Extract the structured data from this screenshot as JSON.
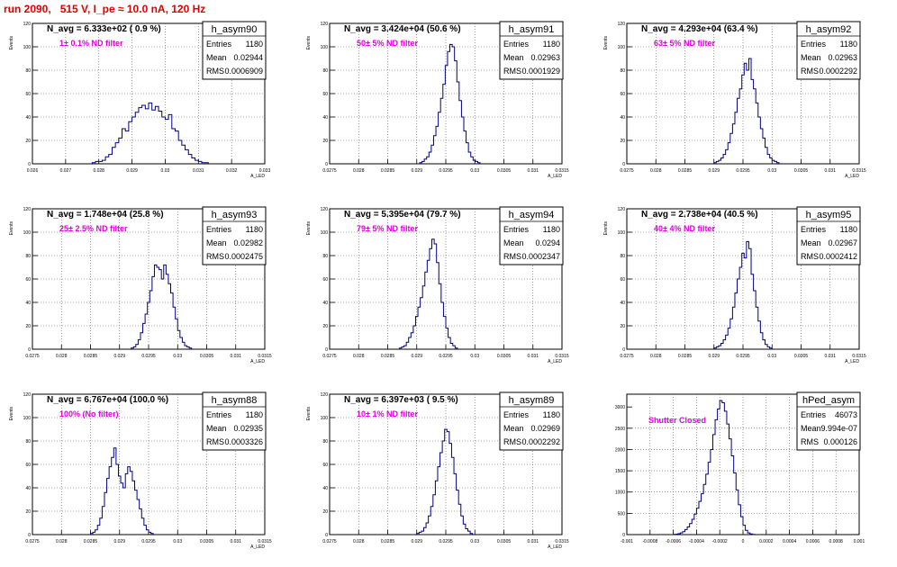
{
  "header": {
    "title": "run 2090,   515 V, I_pe ≈ 10.0 nA, 120 Hz"
  },
  "chart_data": [
    {
      "type": "bar",
      "name": "h_asym90",
      "nav": "N_avg = 6.333e+02 ( 0.9 %)",
      "sub": "1± 0.1% ND filter",
      "stats": {
        "entries_label": "Entries",
        "entries": "1180",
        "mean_label": "Mean",
        "mean": "0.02944",
        "rms_label": "RMS",
        "rms": "0.0006909"
      },
      "ylabel": "Events",
      "xlabel": "A_LED",
      "xlim": [
        0.026,
        0.033
      ],
      "ylim": [
        0,
        120
      ],
      "xticks": [
        "0.026",
        "0.027",
        "0.028",
        "0.029",
        "0.03",
        "0.031",
        "0.032",
        "0.033"
      ],
      "yticks": [
        "0",
        "20",
        "40",
        "60",
        "80",
        "100",
        "120"
      ],
      "hist": {
        "x0": 0.0278,
        "bw": 0.0001,
        "values": [
          1,
          2,
          2,
          3,
          6,
          8,
          14,
          18,
          22,
          30,
          28,
          36,
          40,
          44,
          48,
          50,
          47,
          52,
          46,
          49,
          45,
          40,
          38,
          42,
          30,
          28,
          20,
          16,
          12,
          8,
          5,
          3,
          2,
          1,
          1
        ]
      }
    },
    {
      "type": "bar",
      "name": "h_asym91",
      "nav": "N_avg = 3.424e+04 (50.6 %)",
      "sub": "50± 5% ND filter",
      "stats": {
        "entries_label": "Entries",
        "entries": "1180",
        "mean_label": "Mean",
        "mean": "0.02963",
        "rms_label": "RMS",
        "rms": "0.0001929"
      },
      "ylabel": "Events",
      "xlabel": "A_LED",
      "xlim": [
        0.0275,
        0.0315
      ],
      "ylim": [
        0,
        120
      ],
      "xticks": [
        "0.0275",
        "0.028",
        "0.0285",
        "0.029",
        "0.0295",
        "0.03",
        "0.0305",
        "0.031",
        "0.0315"
      ],
      "yticks": [
        "0",
        "20",
        "40",
        "60",
        "80",
        "100",
        "120"
      ],
      "hist": {
        "x0": 0.02905,
        "bw": 4e-05,
        "values": [
          1,
          2,
          4,
          6,
          10,
          16,
          24,
          32,
          44,
          56,
          68,
          84,
          96,
          102,
          100,
          88,
          70,
          54,
          40,
          28,
          18,
          10,
          6,
          3,
          2,
          1
        ]
      }
    },
    {
      "type": "bar",
      "name": "h_asym92",
      "nav": "N_avg = 4.293e+04 (63.4 %)",
      "sub": "63± 5% ND filter",
      "stats": {
        "entries_label": "Entries",
        "entries": "1180",
        "mean_label": "Mean",
        "mean": "0.02963",
        "rms_label": "RMS",
        "rms": "0.0002292"
      },
      "ylabel": "Events",
      "xlabel": "A_LED",
      "xlim": [
        0.0275,
        0.0315
      ],
      "ylim": [
        0,
        120
      ],
      "xticks": [
        "0.0275",
        "0.028",
        "0.0285",
        "0.029",
        "0.0295",
        "0.03",
        "0.0305",
        "0.031",
        "0.0315"
      ],
      "yticks": [
        "0",
        "20",
        "40",
        "60",
        "80",
        "100",
        "120"
      ],
      "hist": {
        "x0": 0.029,
        "bw": 4e-05,
        "values": [
          1,
          2,
          3,
          5,
          8,
          12,
          18,
          26,
          34,
          44,
          56,
          64,
          76,
          86,
          80,
          90,
          72,
          64,
          52,
          40,
          30,
          22,
          14,
          8,
          5,
          3,
          2,
          1
        ]
      }
    },
    {
      "type": "bar",
      "name": "h_asym93",
      "nav": "N_avg = 1.748e+04 (25.8 %)",
      "sub": "25± 2.5% ND filter",
      "stats": {
        "entries_label": "Entries",
        "entries": "1180",
        "mean_label": "Mean",
        "mean": "0.02982",
        "rms_label": "RMS",
        "rms": "0.0002475"
      },
      "ylabel": "Events",
      "xlabel": "A_LED",
      "xlim": [
        0.0275,
        0.0315
      ],
      "ylim": [
        0,
        120
      ],
      "xticks": [
        "0.0275",
        "0.028",
        "0.0285",
        "0.029",
        "0.0295",
        "0.03",
        "0.0305",
        "0.031",
        "0.0315"
      ],
      "yticks": [
        "0",
        "20",
        "40",
        "60",
        "80",
        "100",
        "120"
      ],
      "hist": {
        "x0": 0.0292,
        "bw": 4e-05,
        "values": [
          1,
          2,
          4,
          8,
          14,
          22,
          30,
          40,
          50,
          62,
          72,
          70,
          68,
          60,
          72,
          64,
          56,
          48,
          36,
          26,
          16,
          10,
          6,
          3,
          2,
          1
        ]
      }
    },
    {
      "type": "bar",
      "name": "h_asym94",
      "nav": "N_avg = 5.395e+04 (79.7 %)",
      "sub": "79± 5% ND filter",
      "stats": {
        "entries_label": "Entries",
        "entries": "1180",
        "mean_label": "Mean",
        "mean": "0.0294",
        "rms_label": "RMS",
        "rms": "0.0002347"
      },
      "ylabel": "Events",
      "xlabel": "A_LED",
      "xlim": [
        0.0275,
        0.0315
      ],
      "ylim": [
        0,
        120
      ],
      "xticks": [
        "0.0275",
        "0.028",
        "0.0285",
        "0.029",
        "0.0295",
        "0.03",
        "0.0305",
        "0.031",
        "0.0315"
      ],
      "yticks": [
        "0",
        "20",
        "40",
        "60",
        "80",
        "100",
        "120"
      ],
      "hist": {
        "x0": 0.0287,
        "bw": 4e-05,
        "values": [
          1,
          2,
          3,
          6,
          10,
          14,
          20,
          28,
          36,
          44,
          54,
          66,
          76,
          86,
          94,
          90,
          74,
          56,
          40,
          28,
          18,
          10,
          5,
          3,
          1
        ]
      }
    },
    {
      "type": "bar",
      "name": "h_asym95",
      "nav": "N_avg = 2.738e+04 (40.5 %)",
      "sub": "40± 4% ND filter",
      "stats": {
        "entries_label": "Entries",
        "entries": "1180",
        "mean_label": "Mean",
        "mean": "0.02967",
        "rms_label": "RMS",
        "rms": "0.0002412"
      },
      "ylabel": "Events",
      "xlabel": "A_LED",
      "xlim": [
        0.0275,
        0.0315
      ],
      "ylim": [
        0,
        120
      ],
      "xticks": [
        "0.0275",
        "0.028",
        "0.0285",
        "0.029",
        "0.0295",
        "0.03",
        "0.0305",
        "0.031",
        "0.0315"
      ],
      "yticks": [
        "0",
        "20",
        "40",
        "60",
        "80",
        "100",
        "120"
      ],
      "hist": {
        "x0": 0.029,
        "bw": 4e-05,
        "values": [
          1,
          2,
          3,
          5,
          8,
          12,
          18,
          26,
          36,
          48,
          60,
          70,
          82,
          78,
          92,
          86,
          64,
          50,
          36,
          24,
          14,
          8,
          4,
          2,
          1
        ]
      }
    },
    {
      "type": "bar",
      "name": "h_asym88",
      "nav": "N_avg = 6.767e+04 (100.0 %)",
      "sub": "100% (No filter)",
      "stats": {
        "entries_label": "Entries",
        "entries": "1180",
        "mean_label": "Mean",
        "mean": "0.02935",
        "rms_label": "RMS",
        "rms": "0.0003326"
      },
      "ylabel": "Events",
      "xlabel": "A_LED",
      "xlim": [
        0.0275,
        0.0315
      ],
      "ylim": [
        0,
        120
      ],
      "xticks": [
        "0.0275",
        "0.028",
        "0.0285",
        "0.029",
        "0.0295",
        "0.03",
        "0.0305",
        "0.031",
        "0.0315"
      ],
      "yticks": [
        "0",
        "20",
        "40",
        "60",
        "80",
        "100",
        "120"
      ],
      "hist": {
        "x0": 0.0285,
        "bw": 4e-05,
        "values": [
          1,
          2,
          4,
          8,
          14,
          24,
          36,
          48,
          58,
          66,
          74,
          60,
          50,
          44,
          40,
          52,
          58,
          54,
          46,
          38,
          30,
          22,
          14,
          8,
          4,
          2,
          1
        ]
      }
    },
    {
      "type": "bar",
      "name": "h_asym89",
      "nav": "N_avg = 6.397e+03 ( 9.5 %)",
      "sub": "10± 1% ND filter",
      "stats": {
        "entries_label": "Entries",
        "entries": "1180",
        "mean_label": "Mean",
        "mean": "0.02969",
        "rms_label": "RMS",
        "rms": "0.0002292"
      },
      "ylabel": "Events",
      "xlabel": "A_LED",
      "xlim": [
        0.0275,
        0.0315
      ],
      "ylim": [
        0,
        120
      ],
      "xticks": [
        "0.0275",
        "0.028",
        "0.0285",
        "0.029",
        "0.0295",
        "0.03",
        "0.0305",
        "0.031",
        "0.0315"
      ],
      "yticks": [
        "0",
        "20",
        "40",
        "60",
        "80",
        "100",
        "120"
      ],
      "hist": {
        "x0": 0.029,
        "bw": 4e-05,
        "values": [
          1,
          2,
          3,
          6,
          10,
          16,
          24,
          34,
          46,
          58,
          70,
          80,
          90,
          88,
          78,
          66,
          52,
          38,
          26,
          16,
          9,
          5,
          3,
          1
        ]
      }
    },
    {
      "type": "bar",
      "name": "hPed_asym",
      "nav": "",
      "sub": "Shutter Closed",
      "stats": {
        "entries_label": "Entries",
        "entries": "46073",
        "mean_label": "Mean",
        "mean": "9.994e-07",
        "rms_label": "RMS",
        "rms": "0.000126"
      },
      "ylabel": "",
      "xlabel": "",
      "xlim": [
        -0.001,
        0.001
      ],
      "ylim": [
        0,
        3300
      ],
      "xticks": [
        "-0.001",
        "-0.0008",
        "-0.0006",
        "-0.0004",
        "-0.0002",
        "0",
        "0.0002",
        "0.0004",
        "0.0006",
        "0.0008",
        "0.001"
      ],
      "yticks": [
        "0",
        "500",
        "1000",
        "1500",
        "2000",
        "2500",
        "3000"
      ],
      "hist": {
        "x0": -0.0006,
        "bw": 2e-05,
        "values": [
          5,
          10,
          20,
          40,
          70,
          120,
          180,
          260,
          360,
          480,
          620,
          780,
          960,
          1180,
          1420,
          1700,
          2000,
          2350,
          2700,
          2950,
          3150,
          3100,
          2900,
          2600,
          2250,
          1850,
          1450,
          1050,
          700,
          420,
          220,
          100,
          40,
          15,
          5
        ]
      }
    }
  ]
}
